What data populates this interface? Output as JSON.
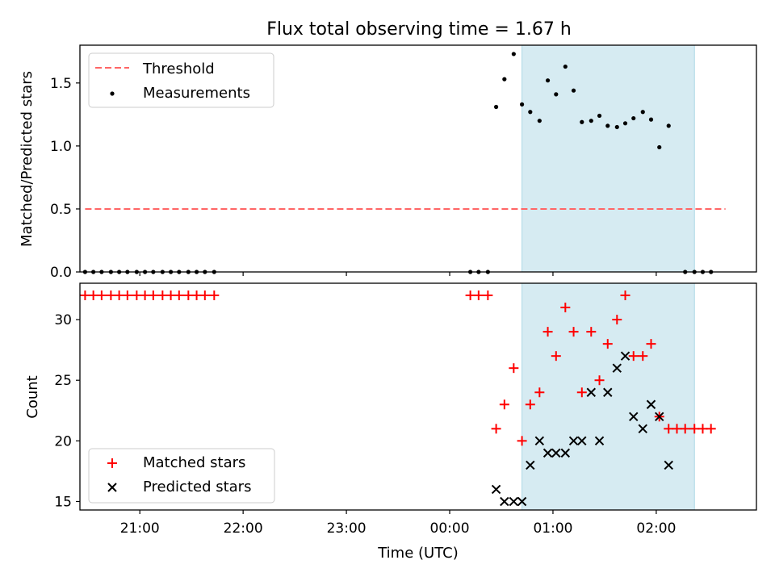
{
  "figure": {
    "title": "Flux total observing time = 1.67 h"
  },
  "chart_data": [
    {
      "type": "scatter",
      "panel": "top",
      "ylabel": "Matched/Predicted stars",
      "xlabel": "",
      "x_unit": "hours",
      "xlim": [
        -0.58,
        5.97
      ],
      "ylim": [
        0,
        1.8
      ],
      "yticks": [
        0.0,
        0.5,
        1.0,
        1.5
      ],
      "ytick_labels": [
        "0.0",
        "0.5",
        "1.0",
        "1.5"
      ],
      "grid": false,
      "legend_position": "top-left",
      "shaded_interval": {
        "x": [
          3.7,
          5.37
        ],
        "color": "#add8e6"
      },
      "threshold": {
        "name": "Threshold",
        "value": 0.5,
        "x": [
          -0.53,
          5.67
        ],
        "color": "#ff6666",
        "style": "dashed"
      },
      "series": [
        {
          "name": "Measurements",
          "color": "#000000",
          "marker": "dot",
          "points": [
            [
              -0.53,
              0
            ],
            [
              -0.45,
              0
            ],
            [
              -0.37,
              0
            ],
            [
              -0.28,
              0
            ],
            [
              -0.2,
              0
            ],
            [
              -0.12,
              0
            ],
            [
              -0.03,
              0
            ],
            [
              0.05,
              0
            ],
            [
              0.13,
              0
            ],
            [
              0.22,
              0
            ],
            [
              0.3,
              0
            ],
            [
              0.38,
              0
            ],
            [
              0.47,
              0
            ],
            [
              0.55,
              0
            ],
            [
              0.63,
              0
            ],
            [
              0.72,
              0
            ],
            [
              3.2,
              0
            ],
            [
              3.28,
              0
            ],
            [
              3.37,
              0
            ],
            [
              3.45,
              1.31
            ],
            [
              3.53,
              1.53
            ],
            [
              3.62,
              1.73
            ],
            [
              3.7,
              1.33
            ],
            [
              3.78,
              1.27
            ],
            [
              3.87,
              1.2
            ],
            [
              3.95,
              1.52
            ],
            [
              4.03,
              1.41
            ],
            [
              4.12,
              1.63
            ],
            [
              4.2,
              1.44
            ],
            [
              4.28,
              1.19
            ],
            [
              4.37,
              1.2
            ],
            [
              4.45,
              1.24
            ],
            [
              4.53,
              1.16
            ],
            [
              4.62,
              1.15
            ],
            [
              4.7,
              1.18
            ],
            [
              4.78,
              1.22
            ],
            [
              4.87,
              1.27
            ],
            [
              4.95,
              1.21
            ],
            [
              5.03,
              0.99
            ],
            [
              5.12,
              1.16
            ],
            [
              5.28,
              0
            ],
            [
              5.37,
              0
            ],
            [
              5.45,
              0
            ],
            [
              5.53,
              0
            ]
          ]
        }
      ]
    },
    {
      "type": "scatter",
      "panel": "bottom",
      "ylabel": "Count",
      "xlabel": "Time (UTC)",
      "x_unit": "hours",
      "xlim": [
        -0.58,
        5.97
      ],
      "ylim": [
        14.3,
        33.0
      ],
      "yticks": [
        15,
        20,
        25,
        30
      ],
      "ytick_labels": [
        "15",
        "20",
        "25",
        "30"
      ],
      "xticks": [
        0,
        1,
        2,
        3,
        4,
        5
      ],
      "xtick_labels": [
        "21:00",
        "22:00",
        "23:00",
        "00:00",
        "01:00",
        "02:00"
      ],
      "grid": false,
      "legend_position": "bottom-left",
      "shaded_interval": {
        "x": [
          3.7,
          5.37
        ],
        "color": "#add8e6"
      },
      "series": [
        {
          "name": "Matched stars",
          "color": "#ff0000",
          "marker": "plus",
          "points": [
            [
              -0.53,
              32
            ],
            [
              -0.45,
              32
            ],
            [
              -0.37,
              32
            ],
            [
              -0.28,
              32
            ],
            [
              -0.2,
              32
            ],
            [
              -0.12,
              32
            ],
            [
              -0.03,
              32
            ],
            [
              0.05,
              32
            ],
            [
              0.13,
              32
            ],
            [
              0.22,
              32
            ],
            [
              0.3,
              32
            ],
            [
              0.38,
              32
            ],
            [
              0.47,
              32
            ],
            [
              0.55,
              32
            ],
            [
              0.63,
              32
            ],
            [
              0.72,
              32
            ],
            [
              3.2,
              32
            ],
            [
              3.28,
              32
            ],
            [
              3.37,
              32
            ],
            [
              3.45,
              21
            ],
            [
              3.53,
              23
            ],
            [
              3.62,
              26
            ],
            [
              3.7,
              20
            ],
            [
              3.78,
              23
            ],
            [
              3.87,
              24
            ],
            [
              3.95,
              29
            ],
            [
              4.03,
              27
            ],
            [
              4.12,
              31
            ],
            [
              4.2,
              29
            ],
            [
              4.28,
              24
            ],
            [
              4.37,
              29
            ],
            [
              4.45,
              25
            ],
            [
              4.53,
              28
            ],
            [
              4.62,
              30
            ],
            [
              4.7,
              32
            ],
            [
              4.78,
              27
            ],
            [
              4.87,
              27
            ],
            [
              4.95,
              28
            ],
            [
              5.03,
              22
            ],
            [
              5.12,
              21
            ],
            [
              5.2,
              21
            ],
            [
              5.28,
              21
            ],
            [
              5.37,
              21
            ],
            [
              5.45,
              21
            ],
            [
              5.53,
              21
            ]
          ]
        },
        {
          "name": "Predicted stars",
          "color": "#000000",
          "marker": "x",
          "points": [
            [
              3.45,
              16
            ],
            [
              3.53,
              15
            ],
            [
              3.62,
              15
            ],
            [
              3.7,
              15
            ],
            [
              3.78,
              18
            ],
            [
              3.87,
              20
            ],
            [
              3.95,
              19
            ],
            [
              4.03,
              19
            ],
            [
              4.12,
              19
            ],
            [
              4.2,
              20
            ],
            [
              4.28,
              20
            ],
            [
              4.37,
              24
            ],
            [
              4.45,
              20
            ],
            [
              4.53,
              24
            ],
            [
              4.62,
              26
            ],
            [
              4.7,
              27
            ],
            [
              4.78,
              22
            ],
            [
              4.87,
              21
            ],
            [
              4.95,
              23
            ],
            [
              5.03,
              22
            ],
            [
              5.12,
              18
            ]
          ]
        }
      ]
    }
  ]
}
